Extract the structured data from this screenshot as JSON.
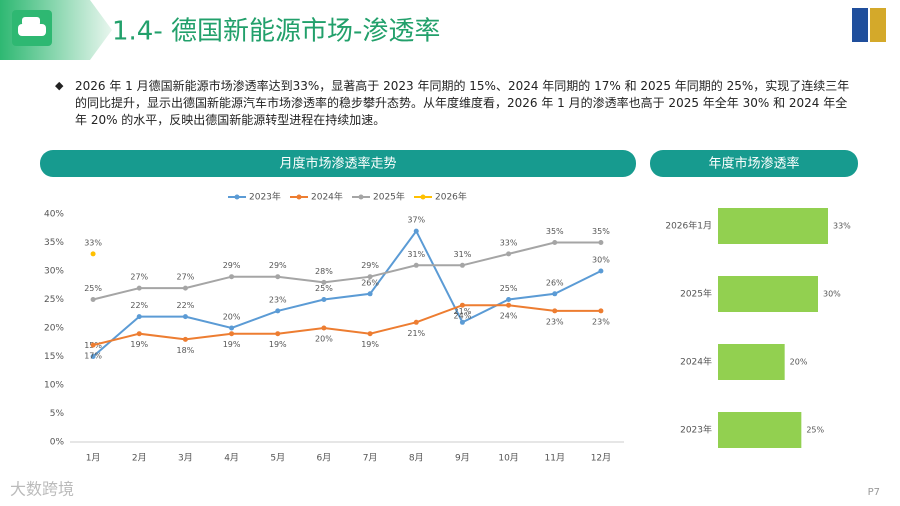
{
  "header": {
    "title": "1.4- 德国新能源市场-渗透率"
  },
  "summary": "2026 年 1 月德国新能源市场渗透率达到33%，显著高于 2023 年同期的 15%、2024 年同期的 17% 和 2025 年同期的 25%，实现了连续三年的同比提升，显示出德国新能源汽车市场渗透率的稳步攀升态势。从年度维度看，2026 年 1 月的渗透率也高于 2025 年全年 30% 和 2024 年全年 20% 的水平，反映出德国新能源转型进程在持续加速。",
  "footer": {
    "page": "P7",
    "watermark": "大数跨境"
  },
  "chart_data": [
    {
      "type": "line",
      "title": "月度市场渗透率走势",
      "categories": [
        "1月",
        "2月",
        "3月",
        "4月",
        "5月",
        "6月",
        "7月",
        "8月",
        "9月",
        "10月",
        "11月",
        "12月"
      ],
      "ylim": [
        0,
        40
      ],
      "yticks": [
        {
          "value": 0,
          "label": "0%"
        },
        {
          "value": 5,
          "label": "5%"
        },
        {
          "value": 10,
          "label": "10%"
        },
        {
          "value": 15,
          "label": "15%"
        },
        {
          "value": 20,
          "label": "20%"
        },
        {
          "value": 25,
          "label": "25%"
        },
        {
          "value": 30,
          "label": "30%"
        },
        {
          "value": 35,
          "label": "35%"
        },
        {
          "value": 40,
          "label": "40%"
        }
      ],
      "legend": "top",
      "series": [
        {
          "name": "2023年",
          "color": "#5b9bd5",
          "values": [
            15,
            22,
            22,
            20,
            23,
            25,
            26,
            37,
            21,
            25,
            26,
            30
          ],
          "value_labels": [
            "15%",
            "22%",
            "22%",
            "20%",
            "23%",
            "25%",
            "26%",
            "37%",
            "21%",
            "25%",
            "26%",
            "30%"
          ]
        },
        {
          "name": "2024年",
          "color": "#ed7d31",
          "values": [
            17,
            19,
            18,
            19,
            19,
            20,
            19,
            21,
            24,
            24,
            23,
            23
          ],
          "value_labels": [
            "17%",
            "19%",
            "18%",
            "19%",
            "19%",
            "20%",
            "19%",
            "21%",
            "24%",
            "24%",
            "23%",
            "23%"
          ]
        },
        {
          "name": "2025年",
          "color": "#a5a5a5",
          "values": [
            25,
            27,
            27,
            29,
            29,
            28,
            29,
            31,
            31,
            33,
            35,
            35
          ],
          "value_labels": [
            "25%",
            "27%",
            "27%",
            "29%",
            "29%",
            "28%",
            "29%",
            "31%",
            "31%",
            "33%",
            "35%",
            "35%"
          ]
        },
        {
          "name": "2026年",
          "color": "#ffc000",
          "values": [
            33,
            null,
            null,
            null,
            null,
            null,
            null,
            null,
            null,
            null,
            null,
            null
          ],
          "value_labels": [
            "33%",
            null,
            null,
            null,
            null,
            null,
            null,
            null,
            null,
            null,
            null,
            null
          ]
        }
      ]
    },
    {
      "type": "hbar",
      "title": "年度市场渗透率",
      "categories": [
        "2026年1月",
        "2025年",
        "2024年",
        "2023年"
      ],
      "values": [
        33,
        30,
        20,
        25
      ],
      "value_labels": [
        "33%",
        "30%",
        "20%",
        "25%"
      ],
      "color": "#92d050"
    }
  ]
}
